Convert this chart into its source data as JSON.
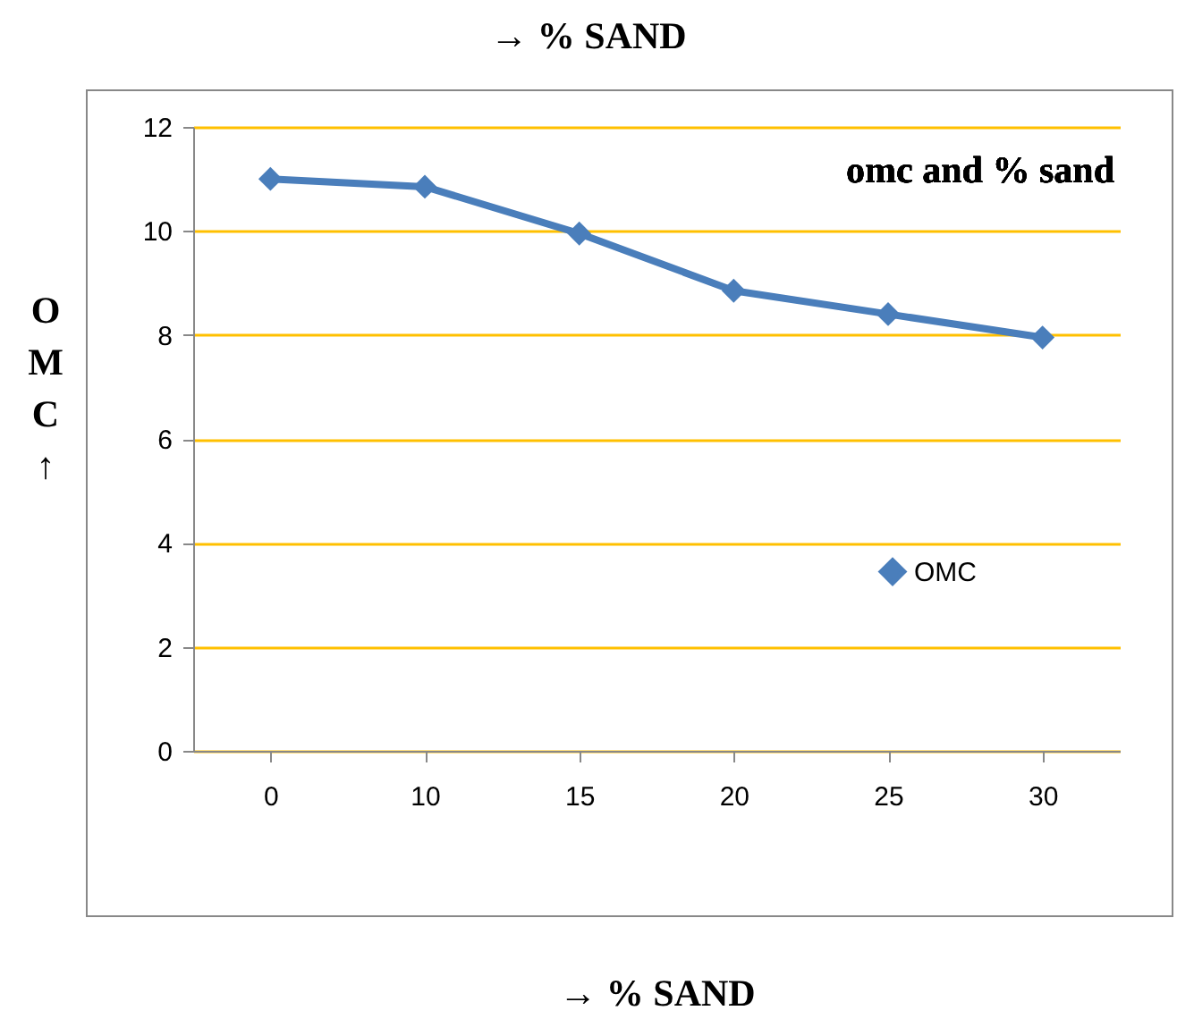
{
  "chart_data": {
    "type": "line",
    "title": "omc and % sand",
    "xlabel": "→ % SAND",
    "ylabel": "OMC↑",
    "annotations": [
      "→ % SAND"
    ],
    "categories": [
      "0",
      "10",
      "15",
      "20",
      "25",
      "30"
    ],
    "series": [
      {
        "name": "OMC",
        "color": "#4a7ebb",
        "values": [
          11,
          10.85,
          9.95,
          8.85,
          8.4,
          7.95
        ]
      }
    ],
    "ylim": [
      0,
      12
    ],
    "yticks": [
      0,
      2,
      4,
      6,
      8,
      10,
      12
    ],
    "grid": "y",
    "legend": "right",
    "marker": "diamond",
    "line_style": "solid"
  }
}
